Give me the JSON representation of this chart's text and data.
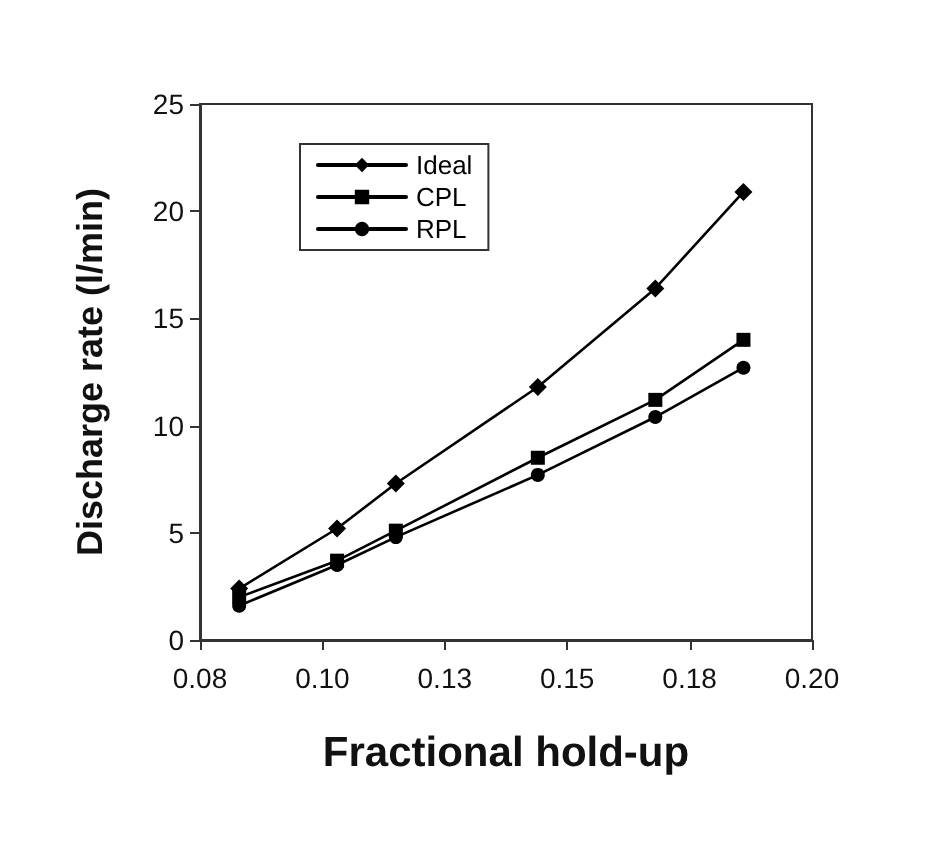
{
  "chart_data": {
    "type": "line",
    "xlabel": "Fractional hold-up",
    "ylabel": "Discharge rate (l/min)",
    "xlim": [
      0.075,
      0.2
    ],
    "xticks": [
      {
        "value": 0.075,
        "label": "0.08"
      },
      {
        "value": 0.1,
        "label": "0.10"
      },
      {
        "value": 0.125,
        "label": "0.13"
      },
      {
        "value": 0.15,
        "label": "0.15"
      },
      {
        "value": 0.175,
        "label": "0.18"
      },
      {
        "value": 0.2,
        "label": "0.20"
      }
    ],
    "ylim": [
      0,
      25
    ],
    "yticks": [
      0,
      5,
      10,
      15,
      20,
      25
    ],
    "x": [
      0.083,
      0.103,
      0.115,
      0.144,
      0.168,
      0.186
    ],
    "series": [
      {
        "name": "Ideal",
        "color": "#000000",
        "marker": "diamond",
        "values": [
          2.4,
          5.2,
          7.3,
          11.8,
          16.4,
          20.9
        ]
      },
      {
        "name": "CPL",
        "color": "#000000",
        "marker": "square",
        "values": [
          2.0,
          3.7,
          5.1,
          8.5,
          11.2,
          14.0
        ]
      },
      {
        "name": "RPL",
        "color": "#000000",
        "marker": "circle",
        "values": [
          1.6,
          3.5,
          4.8,
          7.7,
          10.4,
          12.7
        ]
      }
    ],
    "legend": "top left",
    "grid": false,
    "line_style": "solid"
  }
}
